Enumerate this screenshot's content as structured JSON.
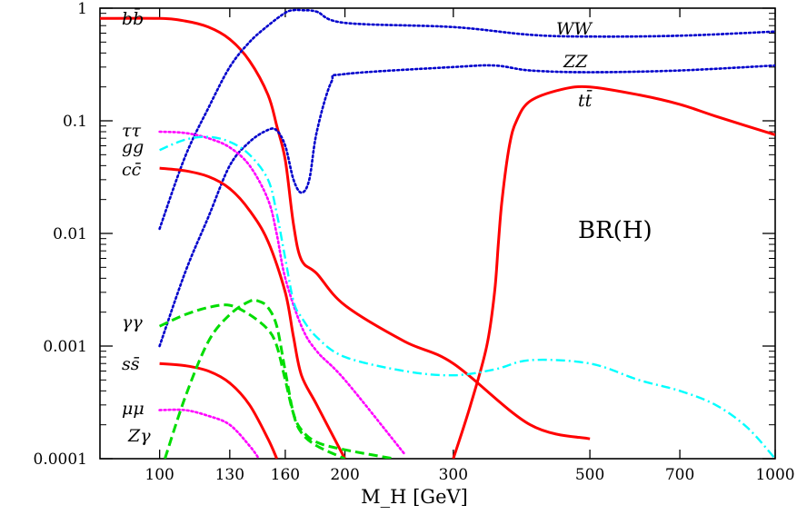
{
  "chart_data": {
    "type": "line",
    "title": "",
    "xlabel": "M_H [GeV]",
    "ylabel": "",
    "xscale": "log",
    "yscale": "log",
    "xlim": [
      80,
      1000
    ],
    "ylim": [
      0.0001,
      1
    ],
    "grid": false,
    "legend": "inline labels",
    "x_ticks": [
      100,
      130,
      160,
      200,
      300,
      500,
      700,
      1000
    ],
    "x_tick_labels": [
      "100",
      "130",
      "160",
      "200",
      "300",
      "500",
      "700",
      "1000"
    ],
    "y_ticks": [
      1,
      0.1,
      0.01,
      0.001,
      0.0001
    ],
    "y_tick_labels": [
      "1",
      "0.1",
      "0.01",
      "0.001",
      "0.0001"
    ],
    "annotation": "BR(H)",
    "colors": {
      "bb": "#ff0000",
      "WW": "#0000cc",
      "ZZ": "#0000cc",
      "tt": "#ff0000",
      "tautau": "#ff00ff",
      "gg": "#00ffff",
      "cc": "#ff0000",
      "gammagamma": "#00dd00",
      "ss": "#ff0000",
      "mumu": "#ff00ff",
      "Zgamma": "#00dd00"
    },
    "series": [
      {
        "key": "bb",
        "name": "bb̄",
        "style": "solid",
        "x": [
          80,
          100,
          110,
          120,
          130,
          140,
          150,
          155,
          160,
          165,
          170,
          180,
          200,
          250,
          300,
          400,
          500
        ],
        "y": [
          0.81,
          0.81,
          0.77,
          0.68,
          0.53,
          0.34,
          0.17,
          0.09,
          0.045,
          0.012,
          0.0058,
          0.0044,
          0.0023,
          0.0011,
          0.0007,
          0.0002,
          0.00015
        ]
      },
      {
        "key": "WW",
        "name": "WW",
        "style": "dotted",
        "x": [
          100,
          110,
          120,
          130,
          140,
          150,
          160,
          165,
          170,
          180,
          200,
          300,
          400,
          500,
          700,
          1000
        ],
        "y": [
          0.011,
          0.048,
          0.13,
          0.3,
          0.5,
          0.7,
          0.91,
          0.96,
          0.96,
          0.93,
          0.74,
          0.68,
          0.58,
          0.56,
          0.57,
          0.62
        ]
      },
      {
        "key": "ZZ",
        "name": "ZZ",
        "style": "dotted",
        "x": [
          100,
          110,
          120,
          130,
          140,
          150,
          155,
          160,
          165,
          170,
          175,
          180,
          190,
          200,
          300,
          350,
          400,
          500,
          700,
          1000
        ],
        "y": [
          0.001,
          0.0045,
          0.014,
          0.04,
          0.065,
          0.083,
          0.082,
          0.06,
          0.03,
          0.023,
          0.03,
          0.08,
          0.22,
          0.26,
          0.3,
          0.31,
          0.28,
          0.27,
          0.28,
          0.31
        ]
      },
      {
        "key": "tt",
        "name": "tt̄",
        "style": "solid",
        "x": [
          300,
          320,
          340,
          350,
          355,
          360,
          370,
          380,
          400,
          450,
          500,
          600,
          700,
          800,
          1000
        ],
        "y": [
          0.0001,
          0.0003,
          0.001,
          0.003,
          0.008,
          0.02,
          0.06,
          0.1,
          0.15,
          0.19,
          0.2,
          0.17,
          0.14,
          0.11,
          0.075
        ]
      },
      {
        "key": "tautau",
        "name": "ττ",
        "style": "dotted",
        "x": [
          100,
          110,
          120,
          130,
          140,
          150,
          155,
          160,
          170,
          180,
          200,
          250
        ],
        "y": [
          0.08,
          0.078,
          0.07,
          0.058,
          0.04,
          0.02,
          0.0098,
          0.004,
          0.0015,
          0.0009,
          0.0005,
          0.00011
        ]
      },
      {
        "key": "gg",
        "name": "gg",
        "style": "dashdot",
        "x": [
          100,
          110,
          120,
          130,
          140,
          150,
          155,
          160,
          165,
          170,
          180,
          200,
          250,
          300,
          350,
          400,
          500,
          600,
          700,
          800,
          900,
          1000
        ],
        "y": [
          0.055,
          0.068,
          0.072,
          0.065,
          0.05,
          0.03,
          0.015,
          0.006,
          0.0025,
          0.0018,
          0.0012,
          0.0008,
          0.0006,
          0.00055,
          0.00062,
          0.00075,
          0.0007,
          0.0005,
          0.0004,
          0.0003,
          0.00019,
          0.0001
        ]
      },
      {
        "key": "cc",
        "name": "cc̄",
        "style": "solid",
        "x": [
          100,
          110,
          120,
          130,
          140,
          150,
          160,
          165,
          170,
          180,
          200
        ],
        "y": [
          0.038,
          0.036,
          0.032,
          0.025,
          0.016,
          0.0085,
          0.003,
          0.0012,
          0.00055,
          0.0003,
          0.0001
        ]
      },
      {
        "key": "gammagamma",
        "name": "γγ",
        "style": "dashed",
        "x": [
          100,
          110,
          120,
          130,
          140,
          150,
          155,
          160,
          165,
          170,
          180,
          200,
          240
        ],
        "y": [
          0.0015,
          0.0019,
          0.0022,
          0.0023,
          0.0019,
          0.0014,
          0.001,
          0.0005,
          0.00025,
          0.00018,
          0.00014,
          0.00012,
          0.0001
        ]
      },
      {
        "key": "ss",
        "name": "ss̄",
        "style": "solid",
        "x": [
          100,
          110,
          120,
          130,
          140,
          150,
          155
        ],
        "y": [
          0.0007,
          0.00067,
          0.0006,
          0.00047,
          0.0003,
          0.00015,
          0.0001
        ]
      },
      {
        "key": "mumu",
        "name": "μμ",
        "style": "dotted",
        "x": [
          100,
          110,
          120,
          130,
          140,
          145
        ],
        "y": [
          0.00027,
          0.00027,
          0.00024,
          0.0002,
          0.00013,
          0.0001
        ]
      },
      {
        "key": "Zgamma",
        "name": "Zγ",
        "style": "dashed",
        "x": [
          102,
          110,
          120,
          130,
          140,
          145,
          150,
          155,
          160,
          165,
          170,
          180,
          200
        ],
        "y": [
          0.0001,
          0.00035,
          0.0011,
          0.0019,
          0.0025,
          0.0025,
          0.0022,
          0.0015,
          0.0006,
          0.00025,
          0.00017,
          0.00013,
          0.0001
        ]
      }
    ],
    "series_labels": {
      "bb": "bb̄",
      "WW": "WW",
      "ZZ": "ZZ",
      "tt": "tt̄",
      "tautau": "ττ",
      "gg": "gg",
      "cc": "cc̄",
      "gammagamma": "γγ",
      "ss": "ss̄",
      "mumu": "μμ",
      "Zgamma": "Zγ"
    }
  }
}
